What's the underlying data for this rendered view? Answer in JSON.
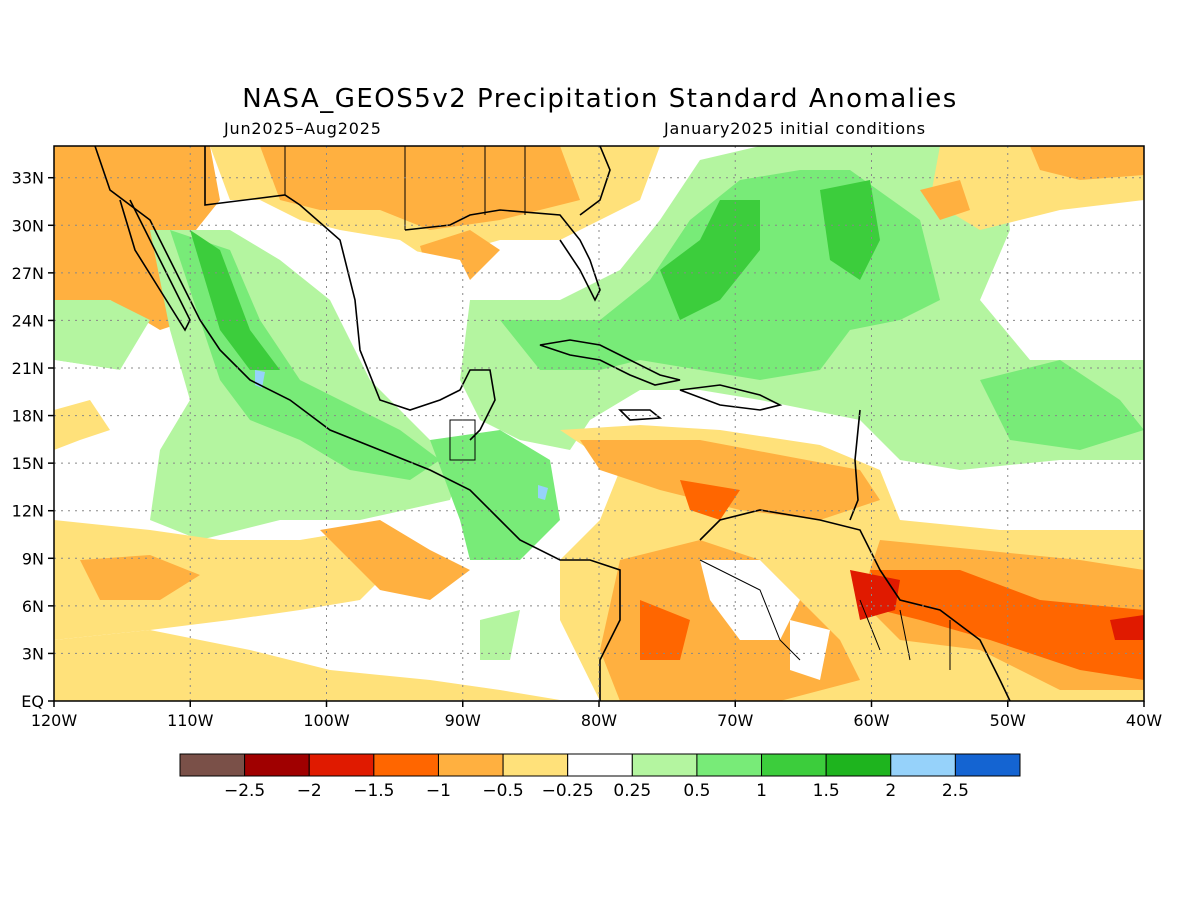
{
  "title": "NASA_GEOS5v2 Precipitation Standard Anomalies",
  "subtitle_left": "Jun2025–Aug2025",
  "subtitle_right": "January2025 initial conditions",
  "map": {
    "lon_range": [
      -120,
      -40
    ],
    "lat_range": [
      0,
      35
    ],
    "lon_ticks": [
      {
        "value": -120,
        "label": "120W"
      },
      {
        "value": -110,
        "label": "110W"
      },
      {
        "value": -100,
        "label": "100W"
      },
      {
        "value": -90,
        "label": "90W"
      },
      {
        "value": -80,
        "label": "80W"
      },
      {
        "value": -70,
        "label": "70W"
      },
      {
        "value": -60,
        "label": "60W"
      },
      {
        "value": -50,
        "label": "50W"
      },
      {
        "value": -40,
        "label": "40W"
      }
    ],
    "lat_ticks": [
      {
        "value": 0,
        "label": "EQ"
      },
      {
        "value": 3,
        "label": "3N"
      },
      {
        "value": 6,
        "label": "6N"
      },
      {
        "value": 9,
        "label": "9N"
      },
      {
        "value": 12,
        "label": "12N"
      },
      {
        "value": 15,
        "label": "15N"
      },
      {
        "value": 18,
        "label": "18N"
      },
      {
        "value": 21,
        "label": "21N"
      },
      {
        "value": 24,
        "label": "24N"
      },
      {
        "value": 27,
        "label": "27N"
      },
      {
        "value": 30,
        "label": "30N"
      },
      {
        "value": 33,
        "label": "33N"
      }
    ],
    "gridlines": true
  },
  "colorbar": {
    "colors": [
      "#7a5048",
      "#a00000",
      "#e01a00",
      "#ff6600",
      "#ffb040",
      "#ffe17a",
      "#ffffff",
      "#b4f5a0",
      "#78eb78",
      "#3ccd3c",
      "#1eb41e",
      "#96d2fa",
      "#1464d2"
    ],
    "labels": [
      "−2.5",
      "−2",
      "−1.5",
      "−1",
      "−0.5",
      "−0.25",
      "0.25",
      "0.5",
      "1",
      "1.5",
      "2",
      "2.5"
    ]
  }
}
